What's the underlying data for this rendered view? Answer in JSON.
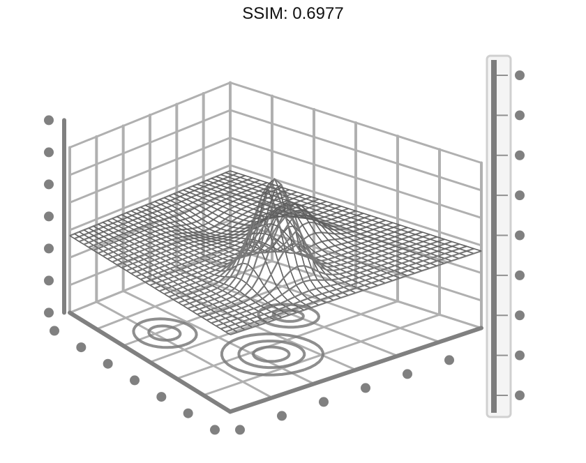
{
  "chart_data": {
    "type": "surface",
    "title": "SSIM: 0.6977",
    "xlabel": "",
    "ylabel": "",
    "zlabel": "",
    "grid": true,
    "colormap": "gray",
    "colorbar": true,
    "colorbar_ticks": 9,
    "surface": {
      "kind": "peaks-like",
      "peaks": [
        {
          "x": -0.7,
          "y": 1.4,
          "height": 1.0
        },
        {
          "x": 1.0,
          "y": 0.1,
          "height": 0.35
        }
      ],
      "troughs": [
        {
          "x": 0.3,
          "y": -1.5,
          "depth": -0.6
        }
      ]
    },
    "contour_projection": true
  },
  "colors": {
    "background": "#ffffff",
    "mesh": "#7a7a7a",
    "grid": "#b0b0b0",
    "axis": "#808080",
    "title": "#111111"
  }
}
